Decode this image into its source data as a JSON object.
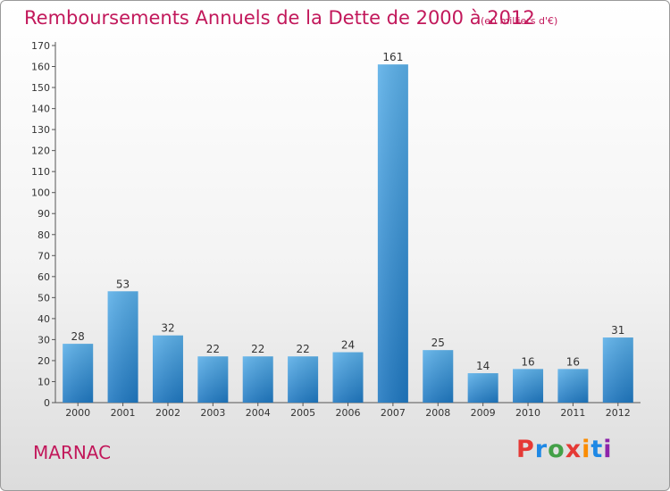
{
  "header": {
    "title": "Remboursements Annuels de la Dette de 2000 à 2012",
    "subtitle": "(en milliers d'€)"
  },
  "footer": {
    "town": "MARNAC",
    "logo_text": "Proxiti"
  },
  "colors": {
    "title": "#c2185b",
    "bar_top": "#5aafe8",
    "bar_bottom": "#1f78c1"
  },
  "chart_data": {
    "type": "bar",
    "title": "Remboursements Annuels de la Dette de 2000 à 2012",
    "subtitle": "(en milliers d'€)",
    "categories": [
      "2000",
      "2001",
      "2002",
      "2003",
      "2004",
      "2005",
      "2006",
      "2007",
      "2008",
      "2009",
      "2010",
      "2011",
      "2012"
    ],
    "values": [
      28,
      53,
      32,
      22,
      22,
      22,
      24,
      161,
      25,
      14,
      16,
      16,
      31
    ],
    "ylim": [
      0,
      170
    ],
    "yticks": [
      0,
      10,
      20,
      30,
      40,
      50,
      60,
      70,
      80,
      90,
      100,
      110,
      120,
      130,
      140,
      150,
      160,
      170
    ],
    "grid": false,
    "legend": "none"
  }
}
